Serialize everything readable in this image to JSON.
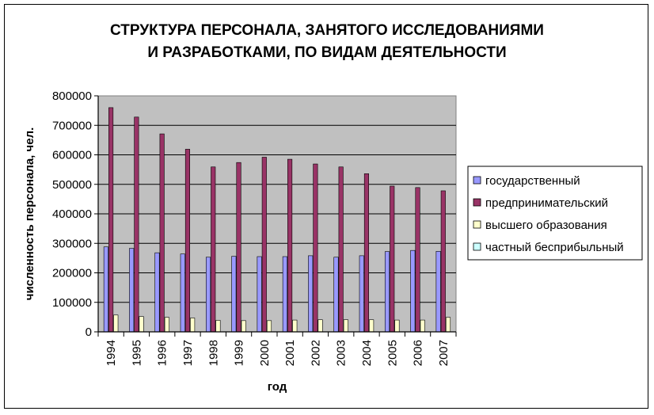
{
  "chart_data": {
    "type": "bar",
    "title_lines": [
      "СТРУКТУРА ПЕРСОНАЛА, ЗАНЯТОГО ИССЛЕДОВАНИЯМИ",
      "И РАЗРАБОТКАМИ, ПО ВИДАМ ДЕЯТЕЛЬНОСТИ"
    ],
    "xlabel": "год",
    "ylabel": "численность персонала, чел.",
    "ylim": [
      0,
      800000
    ],
    "yticks": [
      "0",
      "100000",
      "200000",
      "300000",
      "400000",
      "500000",
      "600000",
      "700000",
      "800000"
    ],
    "categories": [
      "1994",
      "1995",
      "1996",
      "1997",
      "1998",
      "1999",
      "2000",
      "2001",
      "2002",
      "2003",
      "2004",
      "2005",
      "2006",
      "2007"
    ],
    "grid": true,
    "legend_position": "right",
    "plot_background": "#c0c0c0",
    "series": [
      {
        "name": "государственный",
        "color": "#9999ff",
        "values": [
          288000,
          283000,
          268000,
          264000,
          253000,
          256000,
          255000,
          255000,
          258000,
          253000,
          258000,
          272000,
          276000,
          273000
        ]
      },
      {
        "name": "предпринимательский",
        "color": "#993366",
        "values": [
          760000,
          728000,
          671000,
          619000,
          559000,
          574000,
          592000,
          585000,
          569000,
          559000,
          536000,
          494000,
          489000,
          478000
        ]
      },
      {
        "name": "высшего образования",
        "color": "#ffffcc",
        "values": [
          57000,
          52000,
          49000,
          47000,
          39000,
          38000,
          38000,
          40000,
          41000,
          41000,
          41000,
          40000,
          40000,
          49000
        ]
      },
      {
        "name": "частный бесприбыльный",
        "color": "#ccffff",
        "values": [
          0,
          0,
          0,
          0,
          0,
          0,
          0,
          0,
          0,
          0,
          0,
          0,
          0,
          0
        ]
      }
    ]
  }
}
